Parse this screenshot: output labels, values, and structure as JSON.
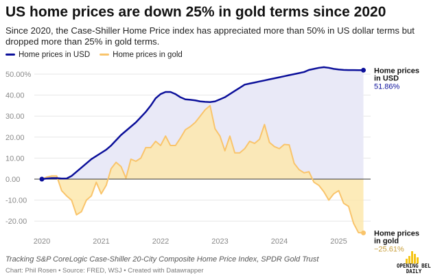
{
  "title": "US home prices are down 25% in gold terms since 2020",
  "subtitle": "Since 2020, the Case-Shiller Home Price index has appreciated more than 50% in US dollar terms but dropped more than 25% in gold terms.",
  "notes": "Tracking S&P CoreLogic Case-Shiller 20-City Composite Home Price Index, SPDR Gold Trust",
  "source": "Chart: Phil Rosen • Source: FRED, WSJ • Created with Datawrapper",
  "logo": {
    "line1": "OPENING BELL",
    "line2": "DAILY"
  },
  "colors": {
    "usd": "#0b0f9a",
    "gold": "#f9c46b",
    "usd_fill": "#e9e9f7",
    "gold_fill": "#fde7ad"
  },
  "chart_data": {
    "type": "area",
    "title": "US home prices are down 25% in gold terms since 2020",
    "ylim": [
      -25,
      53
    ],
    "yticks": [
      -20,
      -10,
      0,
      10,
      20,
      30,
      40,
      50
    ],
    "ytick_labels": [
      "-20.00",
      "-10.00",
      "0.00",
      "10.00",
      "20.00",
      "30.00",
      "40.00",
      "50.00%"
    ],
    "xticks": [
      "2020",
      "2021",
      "2022",
      "2023",
      "2024",
      "2025"
    ],
    "x_start": "2020-01",
    "x_end": "2025-06",
    "frequency": "monthly",
    "grid": true,
    "legend": "top-left",
    "series": [
      {
        "name": "Home prices in USD",
        "end_label": "Home prices in USD",
        "end_value": "51.86%",
        "values": [
          0,
          0.3,
          0.5,
          0.5,
          0.3,
          0.3,
          1.5,
          3.5,
          5.5,
          7.5,
          9.5,
          11,
          12.5,
          14,
          16,
          18.5,
          21,
          23,
          25,
          27,
          29.5,
          32,
          35,
          38.5,
          40.5,
          41.5,
          41.5,
          40.5,
          39,
          38,
          37.8,
          37.5,
          37,
          36.8,
          36.7,
          37,
          38,
          39,
          40.5,
          42,
          43.5,
          45,
          45.5,
          46,
          46.5,
          47,
          47.5,
          48,
          48.5,
          49,
          49.5,
          50,
          50.5,
          51,
          52,
          52.5,
          53,
          53.3,
          53,
          52.5,
          52.2,
          52,
          51.9,
          51.9,
          51.86,
          51.86
        ]
      },
      {
        "name": "Home prices in gold",
        "end_label": "Home prices in gold",
        "end_value": "−25.61%",
        "values": [
          0,
          1,
          1.5,
          1.5,
          -5.5,
          -8,
          -10,
          -17,
          -15.5,
          -10,
          -8,
          -1.5,
          -7,
          -3,
          5,
          8,
          6,
          0.5,
          9.5,
          8.5,
          10,
          15,
          15,
          18,
          16,
          20.5,
          16,
          16,
          19.5,
          23.5,
          25,
          27,
          30,
          33,
          35,
          24,
          20.5,
          13.5,
          20.5,
          12.5,
          12.5,
          14.5,
          18,
          17,
          19,
          26,
          17.5,
          15.5,
          14.5,
          16.5,
          16.3,
          7.5,
          4.5,
          3,
          3.5,
          -1.5,
          -3,
          -6,
          -10,
          -7,
          -5.5,
          -11.5,
          -13,
          -21,
          -25.5,
          -25.61
        ]
      }
    ]
  }
}
